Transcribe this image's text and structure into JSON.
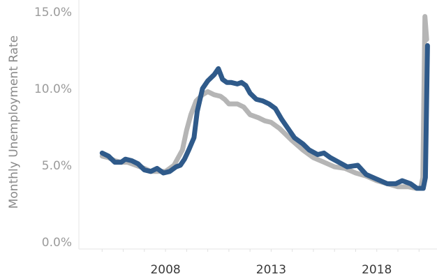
{
  "chart_data": {
    "type": "line",
    "title": "",
    "xlabel": "",
    "ylabel": "Monthly Unemployment Rate",
    "xlim": [
      2003.9,
      2020.85
    ],
    "ylim": [
      0,
      15
    ],
    "x_ticks": [
      2008,
      2013,
      2018
    ],
    "x_tick_labels": [
      "2008",
      "2013",
      "2018"
    ],
    "y_ticks": [
      0,
      5,
      10,
      15
    ],
    "y_tick_labels": [
      "0.0%",
      "5.0%",
      "10.0%",
      "15.0%"
    ],
    "grid": false,
    "legend": "none",
    "series": [
      {
        "color": "#b5b5b5",
        "points": [
          [
            2005.0,
            5.6
          ],
          [
            2005.3,
            5.5
          ],
          [
            2005.6,
            5.3
          ],
          [
            2005.9,
            5.2
          ],
          [
            2006.2,
            5.2
          ],
          [
            2006.6,
            5.0
          ],
          [
            2007.0,
            4.8
          ],
          [
            2007.3,
            4.6
          ],
          [
            2007.7,
            4.6
          ],
          [
            2008.0,
            4.6
          ],
          [
            2008.4,
            5.0
          ],
          [
            2008.8,
            6.0
          ],
          [
            2009.0,
            7.3
          ],
          [
            2009.2,
            8.3
          ],
          [
            2009.45,
            9.2
          ],
          [
            2009.75,
            9.6
          ],
          [
            2010.0,
            9.8
          ],
          [
            2010.3,
            9.6
          ],
          [
            2010.6,
            9.5
          ],
          [
            2010.8,
            9.3
          ],
          [
            2011.0,
            9.0
          ],
          [
            2011.4,
            9.0
          ],
          [
            2011.7,
            8.8
          ],
          [
            2012.0,
            8.3
          ],
          [
            2012.4,
            8.1
          ],
          [
            2012.7,
            7.9
          ],
          [
            2013.0,
            7.8
          ],
          [
            2013.4,
            7.4
          ],
          [
            2013.7,
            7.0
          ],
          [
            2014.0,
            6.6
          ],
          [
            2014.5,
            6.0
          ],
          [
            2015.0,
            5.5
          ],
          [
            2015.5,
            5.2
          ],
          [
            2016.0,
            4.9
          ],
          [
            2016.5,
            4.8
          ],
          [
            2017.0,
            4.5
          ],
          [
            2017.5,
            4.3
          ],
          [
            2018.0,
            4.0
          ],
          [
            2018.5,
            3.8
          ],
          [
            2019.0,
            3.6
          ],
          [
            2019.5,
            3.6
          ],
          [
            2019.85,
            3.5
          ],
          [
            2020.08,
            3.5
          ],
          [
            2020.18,
            4.2
          ],
          [
            2020.28,
            14.7
          ],
          [
            2020.36,
            13.2
          ]
        ]
      },
      {
        "color": "#2f5a8a",
        "points": [
          [
            2005.0,
            5.8
          ],
          [
            2005.3,
            5.6
          ],
          [
            2005.6,
            5.2
          ],
          [
            2005.9,
            5.2
          ],
          [
            2006.1,
            5.4
          ],
          [
            2006.4,
            5.3
          ],
          [
            2006.7,
            5.1
          ],
          [
            2007.0,
            4.7
          ],
          [
            2007.3,
            4.6
          ],
          [
            2007.6,
            4.8
          ],
          [
            2007.9,
            4.5
          ],
          [
            2008.2,
            4.6
          ],
          [
            2008.5,
            4.9
          ],
          [
            2008.7,
            5.0
          ],
          [
            2008.9,
            5.4
          ],
          [
            2009.1,
            6.0
          ],
          [
            2009.35,
            6.8
          ],
          [
            2009.5,
            8.5
          ],
          [
            2009.75,
            10.0
          ],
          [
            2010.0,
            10.5
          ],
          [
            2010.3,
            10.9
          ],
          [
            2010.5,
            11.3
          ],
          [
            2010.7,
            10.6
          ],
          [
            2010.9,
            10.4
          ],
          [
            2011.1,
            10.4
          ],
          [
            2011.4,
            10.3
          ],
          [
            2011.6,
            10.4
          ],
          [
            2011.8,
            10.2
          ],
          [
            2012.0,
            9.7
          ],
          [
            2012.3,
            9.3
          ],
          [
            2012.6,
            9.2
          ],
          [
            2012.9,
            9.0
          ],
          [
            2013.2,
            8.7
          ],
          [
            2013.5,
            8.0
          ],
          [
            2013.8,
            7.4
          ],
          [
            2014.1,
            6.8
          ],
          [
            2014.5,
            6.4
          ],
          [
            2014.8,
            6.0
          ],
          [
            2015.2,
            5.7
          ],
          [
            2015.5,
            5.8
          ],
          [
            2015.8,
            5.5
          ],
          [
            2016.2,
            5.2
          ],
          [
            2016.6,
            4.9
          ],
          [
            2017.1,
            5.0
          ],
          [
            2017.5,
            4.4
          ],
          [
            2018.0,
            4.1
          ],
          [
            2018.5,
            3.8
          ],
          [
            2018.9,
            3.8
          ],
          [
            2019.2,
            4.0
          ],
          [
            2019.6,
            3.8
          ],
          [
            2019.9,
            3.5
          ],
          [
            2020.2,
            3.5
          ],
          [
            2020.3,
            4.2
          ],
          [
            2020.4,
            12.8
          ]
        ]
      }
    ]
  }
}
